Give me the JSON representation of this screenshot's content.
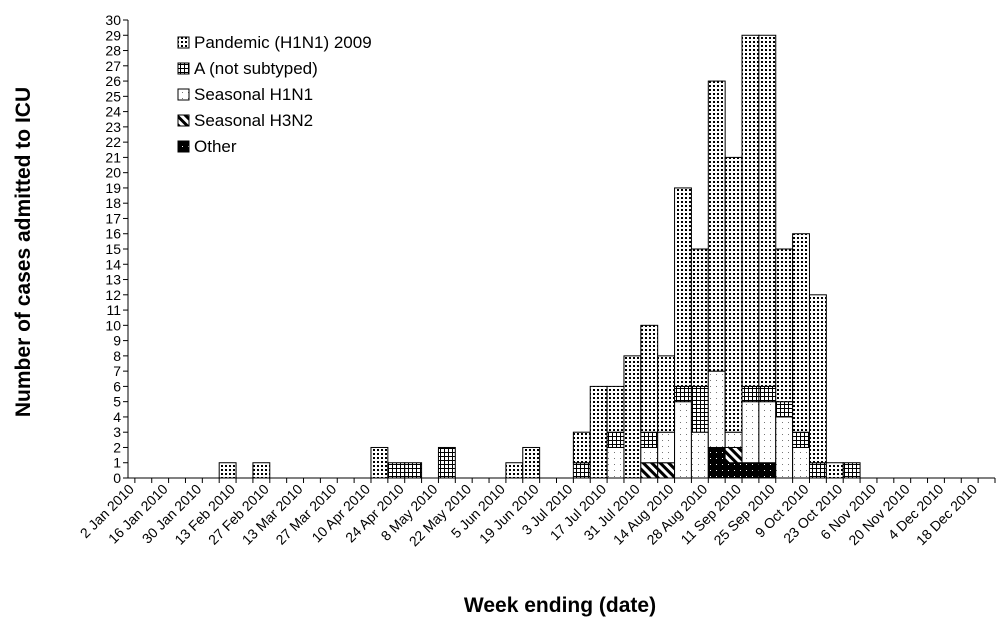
{
  "chart_data": {
    "type": "stacked_bar",
    "y_label": "Number of cases admitted to ICU",
    "x_label": "Week ending (date)",
    "categories": [
      "2 Jan 2010",
      null,
      "16 Jan 2010",
      null,
      "30 Jan 2010",
      null,
      "13 Feb 2010",
      null,
      "27 Feb 2010",
      null,
      "13 Mar 2010",
      null,
      "27 Mar 2010",
      null,
      "10 Apr 2010",
      null,
      "24 Apr 2010",
      null,
      "8 May 2010",
      null,
      "22 May 2010",
      null,
      "5 Jun 2010",
      null,
      "19 Jun 2010",
      null,
      "3 Jul 2010",
      null,
      "17 Jul 2010",
      null,
      "31 Jul 2010",
      null,
      "14 Aug 2010",
      null,
      "28 Aug 2010",
      null,
      "11 Sep 2010",
      null,
      "25 Sep 2010",
      null,
      "9 Oct 2010",
      null,
      "23 Oct 2010",
      null,
      "6 Nov 2010",
      null,
      "20 Nov 2010",
      null,
      "4 Dec 2010",
      null,
      "18 Dec 2010",
      null
    ],
    "series": [
      {
        "name": "Other",
        "color": "#000000",
        "values": [
          0,
          0,
          0,
          0,
          0,
          0,
          0,
          0,
          0,
          0,
          0,
          0,
          0,
          0,
          0,
          0,
          0,
          0,
          0,
          0,
          0,
          0,
          0,
          0,
          0,
          0,
          0,
          0,
          0,
          0,
          0,
          0,
          0,
          0,
          0,
          2,
          1,
          1,
          1,
          0,
          0,
          0,
          0,
          0,
          0,
          0,
          0,
          0,
          0,
          0,
          0,
          0
        ]
      },
      {
        "name": "Seasonal H3N2",
        "color": "#000000",
        "values": [
          0,
          0,
          0,
          0,
          0,
          0,
          0,
          0,
          0,
          0,
          0,
          0,
          0,
          0,
          0,
          0,
          0,
          0,
          0,
          0,
          0,
          0,
          0,
          0,
          0,
          0,
          0,
          0,
          0,
          0,
          0,
          1,
          1,
          0,
          0,
          0,
          1,
          0,
          0,
          0,
          0,
          0,
          0,
          0,
          0,
          0,
          0,
          0,
          0,
          0,
          0,
          0
        ]
      },
      {
        "name": "Seasonal H1N1",
        "color": "#000000",
        "values": [
          0,
          0,
          0,
          0,
          0,
          0,
          0,
          0,
          0,
          0,
          0,
          0,
          0,
          0,
          0,
          0,
          0,
          0,
          0,
          0,
          0,
          0,
          0,
          0,
          0,
          0,
          0,
          0,
          0,
          2,
          0,
          1,
          2,
          5,
          3,
          5,
          1,
          4,
          4,
          4,
          2,
          0,
          0,
          0,
          0,
          0,
          0,
          0,
          0,
          0,
          0,
          0
        ]
      },
      {
        "name": "A (not subtyped)",
        "color": "#000000",
        "values": [
          0,
          0,
          0,
          0,
          0,
          0,
          0,
          0,
          0,
          0,
          0,
          0,
          0,
          0,
          0,
          0,
          1,
          1,
          0,
          2,
          0,
          0,
          0,
          0,
          0,
          0,
          0,
          1,
          0,
          1,
          0,
          1,
          0,
          1,
          3,
          0,
          0,
          1,
          1,
          1,
          1,
          1,
          0,
          1,
          0,
          0,
          0,
          0,
          0,
          0,
          0,
          0
        ]
      },
      {
        "name": "Pandemic (H1N1) 2009",
        "color": "#000000",
        "values": [
          0,
          0,
          0,
          0,
          0,
          0,
          1,
          0,
          1,
          0,
          0,
          0,
          0,
          0,
          0,
          2,
          0,
          0,
          0,
          0,
          0,
          0,
          0,
          1,
          2,
          0,
          0,
          2,
          6,
          3,
          8,
          7,
          5,
          13,
          9,
          19,
          18,
          23,
          23,
          10,
          13,
          11,
          1,
          0,
          0,
          0,
          0,
          0,
          0,
          0,
          0,
          0
        ]
      }
    ],
    "legend_order": [
      "Pandemic (H1N1) 2009",
      "A (not subtyped)",
      "Seasonal H1N1",
      "Seasonal H3N2",
      "Other"
    ],
    "ylim": [
      0,
      30
    ],
    "yticks": [
      0,
      1,
      2,
      3,
      4,
      5,
      6,
      7,
      8,
      9,
      10,
      11,
      12,
      13,
      14,
      15,
      16,
      17,
      18,
      19,
      20,
      21,
      22,
      23,
      24,
      25,
      26,
      27,
      28,
      29,
      30
    ]
  }
}
